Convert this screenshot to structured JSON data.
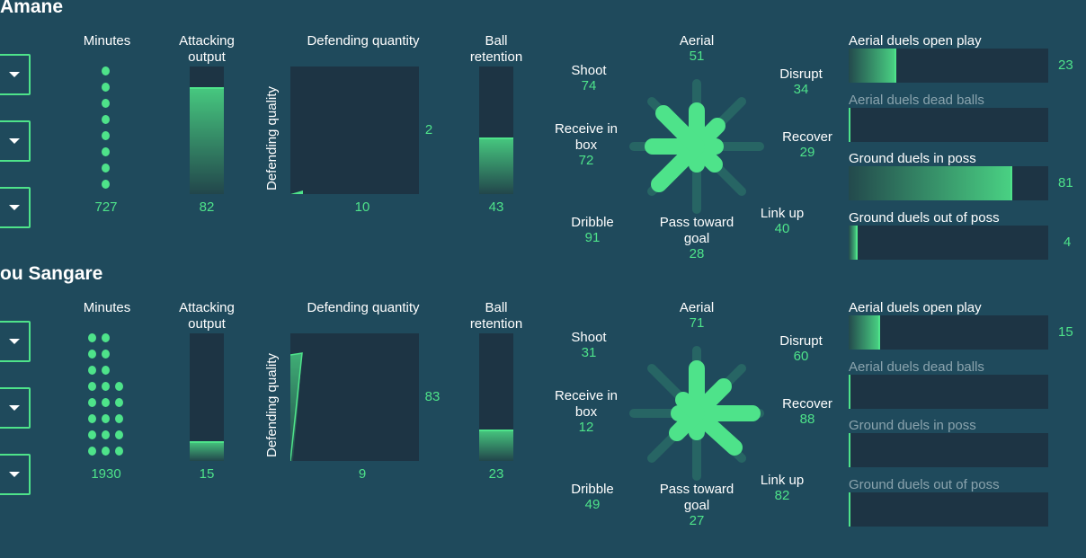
{
  "colors": {
    "accent": "#4ee38a",
    "background": "#1f4a5c",
    "panel": "#1d3444",
    "dim_label": "#8aa3ad"
  },
  "labels": {
    "minutes": "Minutes",
    "attacking": "Attacking output",
    "defending_quantity": "Defending quantity",
    "defending_quality": "Defending quality",
    "ball_retention": "Ball retention",
    "aerial": "Aerial",
    "shoot": "Shoot",
    "disrupt": "Disrupt",
    "receive": "Receive in box",
    "recover": "Recover",
    "dribble": "Dribble",
    "pass": "Pass toward goal",
    "linkup": "Link up",
    "duels": [
      "Aerial duels open play",
      "Aerial duels dead balls",
      "Ground duels in poss",
      "Ground duels out of poss"
    ]
  },
  "players": [
    {
      "name": "Amane",
      "dropdown_icon": "chevron-down-icon",
      "minutes": "727",
      "minutes_dot_count": 8,
      "attacking_output": "82",
      "defending_quantity": "10",
      "defending_quality": "2",
      "ball_retention": "43",
      "star": {
        "aerial": "51",
        "shoot": "74",
        "disrupt": "34",
        "receive": "72",
        "recover": "29",
        "dribble": "91",
        "pass": "28",
        "linkup": "40"
      },
      "duels": [
        "23",
        "",
        "81",
        "4"
      ],
      "duels_dimmed": [
        false,
        true,
        false,
        false
      ]
    },
    {
      "name": "ou Sangare",
      "dropdown_icon": "chevron-down-icon",
      "minutes": "1930",
      "minutes_dot_count": 21,
      "attacking_output": "15",
      "defending_quantity": "9",
      "defending_quality": "83",
      "ball_retention": "23",
      "star": {
        "aerial": "71",
        "shoot": "31",
        "disrupt": "60",
        "receive": "12",
        "recover": "88",
        "dribble": "49",
        "pass": "27",
        "linkup": "82"
      },
      "duels": [
        "15",
        "",
        "",
        ""
      ],
      "duels_dimmed": [
        false,
        true,
        true,
        true
      ]
    }
  ]
}
